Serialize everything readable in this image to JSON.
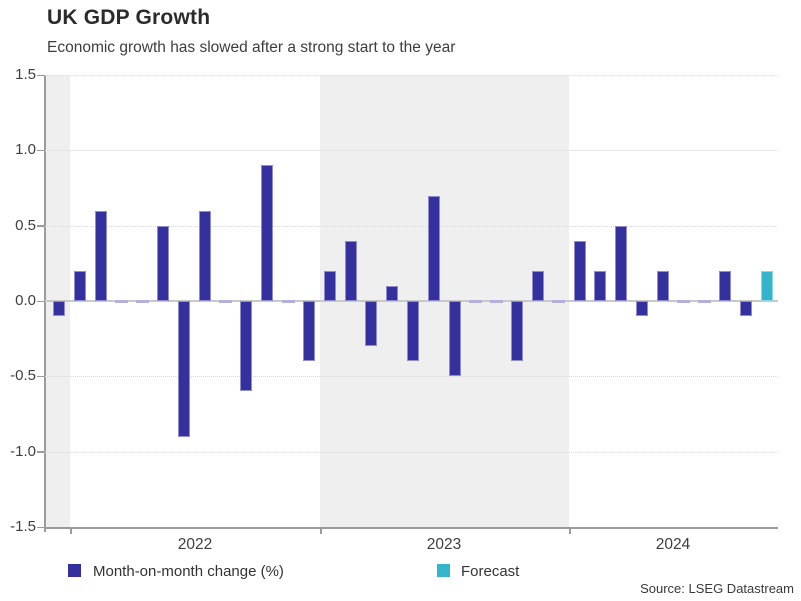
{
  "header": {
    "title": "UK GDP Growth",
    "subtitle": "Economic growth has slowed after a strong start to the year"
  },
  "source": "Source: LSEG Datastream",
  "legend": {
    "mom": {
      "label": "Month-on-month change (%)",
      "color": "#34319e"
    },
    "forecast": {
      "label": "Forecast",
      "color": "#35b5cc"
    }
  },
  "colors": {
    "bar": "#34319e",
    "bar_outline": "#a7a5db",
    "forecast_bar": "#35b5cc",
    "zero_dash": "#b2b0de",
    "year_shading": "#efefef",
    "zero_line": "#c9c9c9",
    "axis": "#9b9b9b",
    "gridline": "#d9d9d9"
  },
  "chart_data": {
    "type": "bar",
    "title": "UK GDP Growth",
    "subtitle": "Economic growth has slowed after a strong start to the year",
    "ylabel": "Month-on-month change (%)",
    "unit": "%",
    "ylim": [
      -1.5,
      1.5
    ],
    "yticks": [
      "1.5",
      "1.0",
      "0.5",
      "0.0",
      "-0.5",
      "-1.0",
      "-1.5"
    ],
    "year_labels": [
      "2022",
      "2023",
      "2024"
    ],
    "grid": "horizontal-dotted",
    "legend_position": "bottom",
    "shaded_regions": [
      "Dec 2021 (pre-2022 sliver)",
      "full year 2023"
    ],
    "series": [
      {
        "name": "Month-on-month change (%)",
        "color": "#34319e"
      },
      {
        "name": "Forecast",
        "color": "#35b5cc"
      }
    ],
    "points": [
      {
        "month": "2021-12",
        "value": -0.1,
        "series": "mom"
      },
      {
        "month": "2022-01",
        "value": 0.2,
        "series": "mom"
      },
      {
        "month": "2022-02",
        "value": 0.6,
        "series": "mom"
      },
      {
        "month": "2022-03",
        "value": 0.0,
        "series": "mom"
      },
      {
        "month": "2022-04",
        "value": 0.0,
        "series": "mom"
      },
      {
        "month": "2022-05",
        "value": 0.5,
        "series": "mom"
      },
      {
        "month": "2022-06",
        "value": -0.9,
        "series": "mom"
      },
      {
        "month": "2022-07",
        "value": 0.6,
        "series": "mom"
      },
      {
        "month": "2022-08",
        "value": 0.0,
        "series": "mom"
      },
      {
        "month": "2022-09",
        "value": -0.6,
        "series": "mom"
      },
      {
        "month": "2022-10",
        "value": 0.9,
        "series": "mom"
      },
      {
        "month": "2022-11",
        "value": 0.0,
        "series": "mom"
      },
      {
        "month": "2022-12",
        "value": -0.4,
        "series": "mom"
      },
      {
        "month": "2023-01",
        "value": 0.2,
        "series": "mom"
      },
      {
        "month": "2023-02",
        "value": 0.4,
        "series": "mom"
      },
      {
        "month": "2023-03",
        "value": -0.3,
        "series": "mom"
      },
      {
        "month": "2023-04",
        "value": 0.1,
        "series": "mom"
      },
      {
        "month": "2023-05",
        "value": -0.4,
        "series": "mom"
      },
      {
        "month": "2023-06",
        "value": 0.7,
        "series": "mom"
      },
      {
        "month": "2023-07",
        "value": -0.5,
        "series": "mom"
      },
      {
        "month": "2023-08",
        "value": 0.0,
        "series": "mom"
      },
      {
        "month": "2023-09",
        "value": 0.0,
        "series": "mom"
      },
      {
        "month": "2023-10",
        "value": -0.4,
        "series": "mom"
      },
      {
        "month": "2023-11",
        "value": 0.2,
        "series": "mom"
      },
      {
        "month": "2023-12",
        "value": 0.0,
        "series": "mom"
      },
      {
        "month": "2024-01",
        "value": 0.4,
        "series": "mom"
      },
      {
        "month": "2024-02",
        "value": 0.2,
        "series": "mom"
      },
      {
        "month": "2024-03",
        "value": 0.5,
        "series": "mom"
      },
      {
        "month": "2024-04",
        "value": -0.1,
        "series": "mom"
      },
      {
        "month": "2024-05",
        "value": 0.2,
        "series": "mom"
      },
      {
        "month": "2024-06",
        "value": 0.0,
        "series": "mom"
      },
      {
        "month": "2024-07",
        "value": 0.0,
        "series": "mom"
      },
      {
        "month": "2024-08",
        "value": 0.2,
        "series": "mom"
      },
      {
        "month": "2024-09",
        "value": -0.1,
        "series": "mom"
      },
      {
        "month": "2024-10",
        "value": 0.2,
        "series": "forecast"
      }
    ]
  }
}
